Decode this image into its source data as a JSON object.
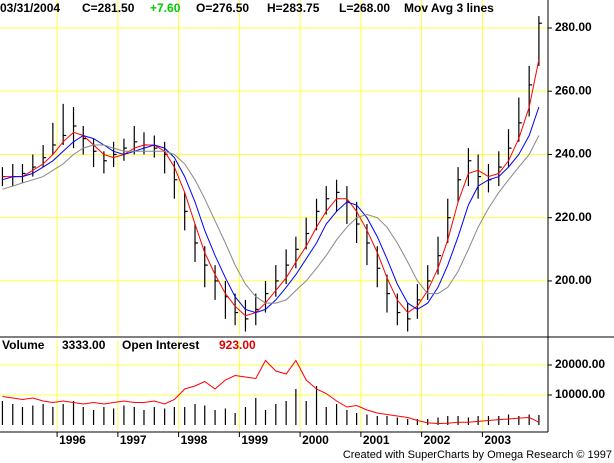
{
  "chart_data": [
    {
      "type": "ohlc",
      "header": {
        "date": "03/31/2004",
        "close": "C=281.50",
        "change": "+7.60",
        "open": "O=276.50",
        "high": "H=283.75",
        "low": "L=268.00",
        "study": "Mov Avg 3 lines"
      },
      "x": [
        1995.1,
        1995.27,
        1995.43,
        1995.6,
        1995.77,
        1995.93,
        1996.1,
        1996.27,
        1996.43,
        1996.6,
        1996.77,
        1996.93,
        1997.1,
        1997.27,
        1997.43,
        1997.6,
        1997.77,
        1997.93,
        1998.1,
        1998.27,
        1998.43,
        1998.6,
        1998.77,
        1998.93,
        1999.1,
        1999.27,
        1999.43,
        1999.6,
        1999.77,
        1999.93,
        2000.1,
        2000.27,
        2000.43,
        2000.6,
        2000.77,
        2000.93,
        2001.1,
        2001.27,
        2001.43,
        2001.6,
        2001.77,
        2001.93,
        2002.1,
        2002.27,
        2002.43,
        2002.6,
        2002.77,
        2002.93,
        2003.1,
        2003.27,
        2003.43,
        2003.6,
        2003.77,
        2003.93
      ],
      "high": [
        236,
        237,
        237,
        240,
        243,
        250,
        256,
        255,
        249,
        245,
        241,
        244,
        245,
        249,
        247,
        246,
        244,
        238,
        228,
        218,
        211,
        205,
        200,
        196,
        194,
        196,
        200,
        205,
        210,
        214,
        220,
        226,
        230,
        232,
        230,
        225,
        218,
        211,
        202,
        196,
        193,
        199,
        205,
        214,
        226,
        236,
        242,
        240,
        237,
        241,
        248,
        258,
        268,
        283.75
      ],
      "low": [
        230,
        230,
        231,
        233,
        236,
        240,
        243,
        242,
        240,
        236,
        234,
        236,
        238,
        240,
        240,
        239,
        234,
        226,
        216,
        206,
        198,
        194,
        188,
        186,
        184,
        186,
        190,
        195,
        199,
        204,
        210,
        216,
        221,
        222,
        218,
        212,
        205,
        198,
        190,
        186,
        184,
        188,
        194,
        202,
        212,
        225,
        230,
        226,
        228,
        230,
        236,
        244,
        252,
        268
      ],
      "close": [
        233,
        233,
        234,
        236,
        239,
        243,
        246,
        249,
        245,
        241,
        238,
        240,
        242,
        244,
        243,
        242,
        240,
        232,
        222,
        212,
        205,
        200,
        195,
        190,
        188,
        191,
        196,
        200,
        205,
        210,
        215,
        222,
        226,
        228,
        225,
        218,
        212,
        204,
        196,
        190,
        188,
        194,
        200,
        208,
        220,
        232,
        238,
        233,
        232,
        236,
        242,
        250,
        262,
        281.5
      ],
      "bar_color": "#000000",
      "series": [
        {
          "color": "#ff0000",
          "values": [
            233,
            233,
            233,
            235,
            237,
            240,
            244,
            247,
            246,
            243,
            240,
            239,
            240,
            242,
            243,
            243,
            241,
            236,
            228,
            218,
            209,
            202,
            196,
            192,
            189,
            190,
            193,
            197,
            201,
            206,
            211,
            217,
            222,
            226,
            226,
            222,
            216,
            209,
            201,
            194,
            190,
            192,
            197,
            204,
            213,
            225,
            234,
            235,
            233,
            234,
            238,
            245,
            255,
            270
          ]
        },
        {
          "color": "#0000ff",
          "values": [
            232,
            233,
            233,
            234,
            236,
            238,
            241,
            244,
            246,
            245,
            243,
            241,
            240,
            241,
            242,
            243,
            242,
            239,
            233,
            225,
            216,
            208,
            201,
            195,
            191,
            190,
            191,
            194,
            198,
            202,
            207,
            212,
            218,
            222,
            225,
            224,
            220,
            214,
            207,
            199,
            193,
            191,
            193,
            198,
            205,
            214,
            224,
            230,
            232,
            233,
            236,
            240,
            246,
            255
          ]
        },
        {
          "color": "#888888",
          "values": [
            229,
            230,
            231,
            232,
            233,
            235,
            237,
            240,
            242,
            243,
            243,
            242,
            241,
            241,
            241,
            241,
            241,
            240,
            237,
            232,
            226,
            219,
            212,
            205,
            199,
            195,
            193,
            193,
            194,
            197,
            200,
            204,
            208,
            213,
            217,
            220,
            221,
            220,
            217,
            212,
            206,
            200,
            196,
            196,
            198,
            203,
            210,
            217,
            223,
            228,
            232,
            236,
            240,
            246
          ]
        }
      ],
      "xlim": [
        1995.06,
        2004.08
      ],
      "xticks": [
        1996,
        1997,
        1998,
        1999,
        2000,
        2001,
        2002,
        2003
      ],
      "ylim": [
        182.9,
        288.85
      ],
      "yticks": [
        {
          "value": 200,
          "label": "200.00"
        },
        {
          "value": 220,
          "label": "220.00"
        },
        {
          "value": 240,
          "label": "240.00"
        },
        {
          "value": 260,
          "label": "260.00"
        },
        {
          "value": 280,
          "label": "280.00"
        }
      ],
      "grid": true,
      "grid_color": "#ffff44"
    },
    {
      "type": "bar",
      "header": {
        "volume": "Volume",
        "volume_value": "3333.00",
        "oi": "Open Interest",
        "oi_value": "923.00"
      },
      "x": [
        1995.1,
        1995.27,
        1995.43,
        1995.6,
        1995.77,
        1995.93,
        1996.1,
        1996.27,
        1996.43,
        1996.6,
        1996.77,
        1996.93,
        1997.1,
        1997.27,
        1997.43,
        1997.6,
        1997.77,
        1997.93,
        1998.1,
        1998.27,
        1998.43,
        1998.6,
        1998.77,
        1998.93,
        1999.1,
        1999.27,
        1999.43,
        1999.6,
        1999.77,
        1999.93,
        2000.1,
        2000.27,
        2000.43,
        2000.6,
        2000.77,
        2000.93,
        2001.1,
        2001.27,
        2001.43,
        2001.6,
        2001.77,
        2001.93,
        2002.1,
        2002.27,
        2002.43,
        2002.6,
        2002.77,
        2002.93,
        2003.1,
        2003.27,
        2003.43,
        2003.6,
        2003.77,
        2003.93
      ],
      "series": [
        {
          "color": "#000000",
          "values": [
            8000,
            7000,
            6000,
            6500,
            7000,
            6000,
            7000,
            8000,
            6000,
            5000,
            6000,
            5500,
            6500,
            6000,
            5000,
            6000,
            5500,
            6000,
            6000,
            7000,
            6500,
            5000,
            5500,
            4000,
            6000,
            9000,
            5000,
            7000,
            8000,
            12000,
            8000,
            13000,
            6000,
            7000,
            5000,
            4000,
            3500,
            3000,
            3000,
            2500,
            2000,
            2000,
            2000,
            2500,
            3000,
            3000,
            2500,
            3000,
            3000,
            3000,
            3500,
            3000,
            3500,
            3333
          ]
        },
        {
          "color": "#ff0000",
          "line": true,
          "values": [
            9500,
            9000,
            8500,
            9000,
            8000,
            7500,
            8000,
            7500,
            7000,
            7500,
            7000,
            7500,
            8000,
            7500,
            7500,
            8000,
            7000,
            8500,
            12000,
            13000,
            14500,
            12000,
            15000,
            16500,
            16000,
            15500,
            21500,
            18000,
            17000,
            21500,
            15000,
            12000,
            10500,
            8000,
            6000,
            6500,
            5000,
            4000,
            3500,
            3000,
            2500,
            1500,
            700,
            500,
            600,
            900,
            900,
            1200,
            1500,
            1800,
            2000,
            2300,
            2500,
            923
          ]
        }
      ],
      "xlim": [
        1995.06,
        2004.08
      ],
      "xticks": [
        1996,
        1997,
        1998,
        1999,
        2000,
        2001,
        2002,
        2003
      ],
      "ylim": [
        -1667,
        28333
      ],
      "yticks": [
        {
          "value": 10000,
          "label": "10000.00"
        },
        {
          "value": 20000,
          "label": "20000.00"
        }
      ],
      "grid": true,
      "grid_color": "#ffff44",
      "footer": "Created with SuperCharts by Omega Research © 1997"
    }
  ]
}
